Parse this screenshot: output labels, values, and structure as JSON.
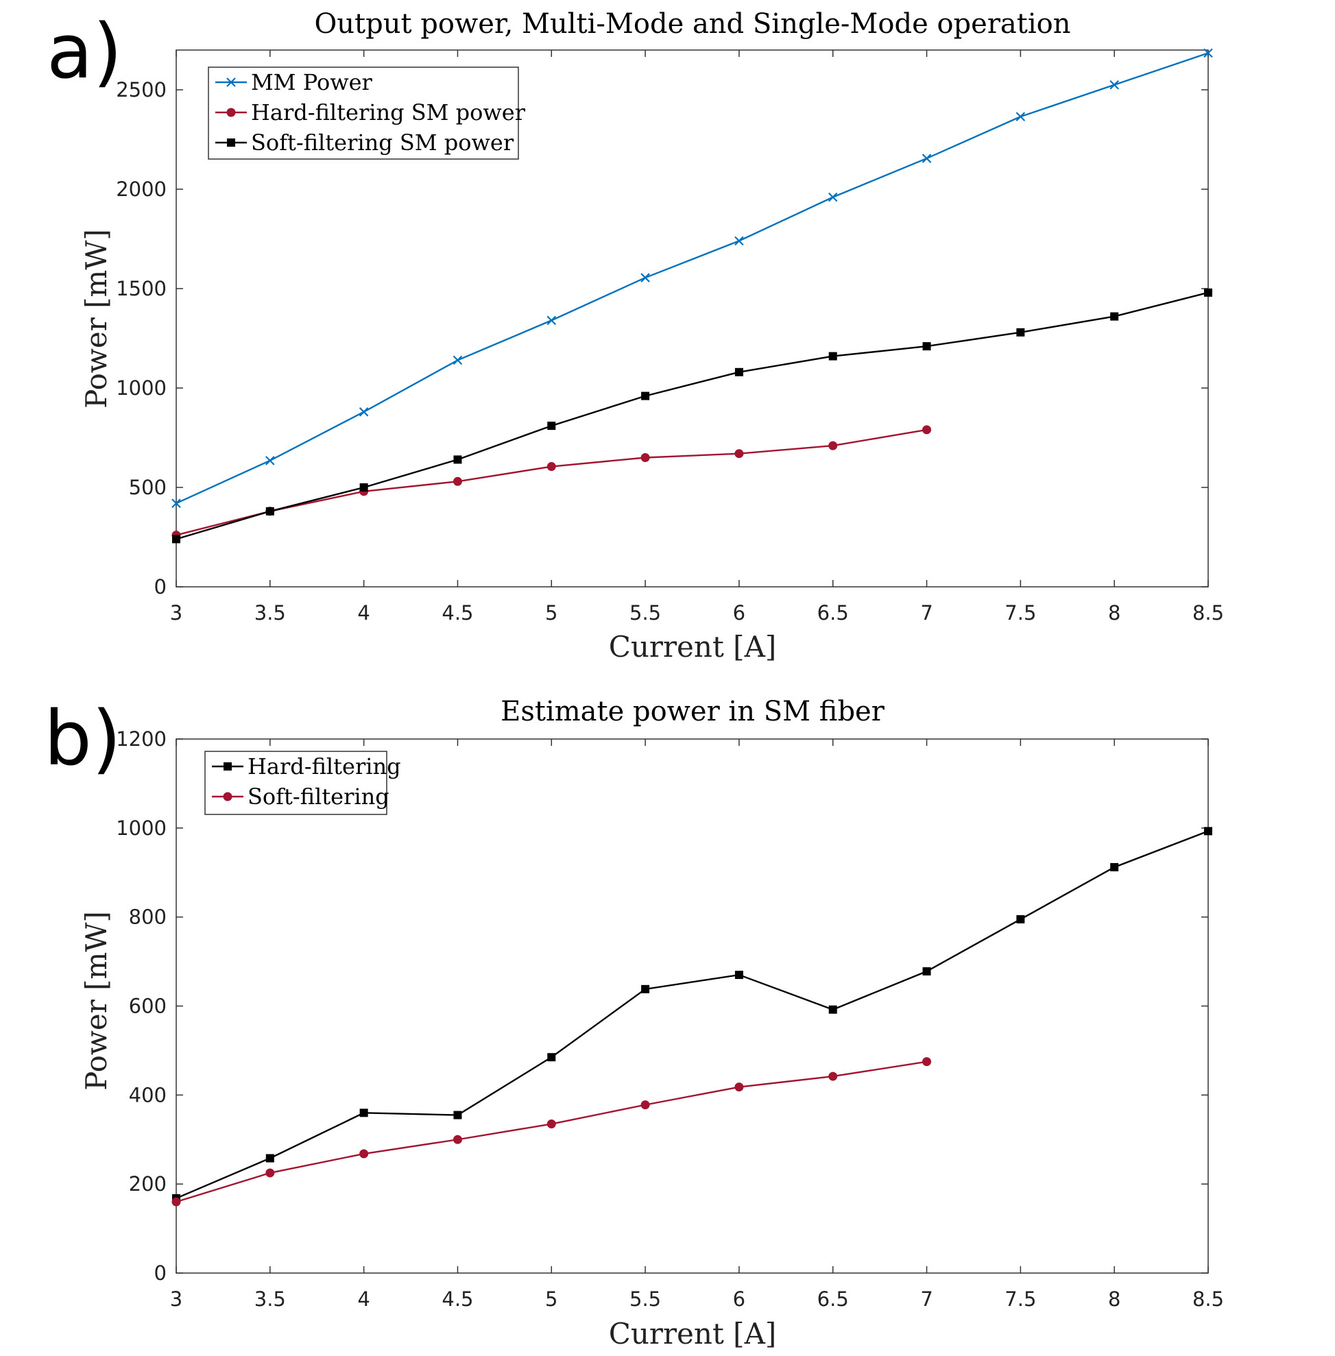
{
  "chart_data": [
    {
      "type": "line",
      "panel_label": "a)",
      "title": "Output power, Multi-Mode and Single-Mode operation",
      "xlabel": "Current [A]",
      "ylabel": "Power [mW]",
      "xlim": [
        3,
        8.5
      ],
      "ylim": [
        0,
        2700
      ],
      "xticks": [
        3,
        3.5,
        4,
        4.5,
        5,
        5.5,
        6,
        6.5,
        7,
        7.5,
        8,
        8.5
      ],
      "xtick_labels": [
        "3",
        "3.5",
        "4",
        "4.5",
        "5",
        "5.5",
        "6",
        "6.5",
        "7",
        "7.5",
        "8",
        "8.5"
      ],
      "yticks": [
        0,
        500,
        1000,
        1500,
        2000,
        2500
      ],
      "ytick_labels": [
        "0",
        "500",
        "1000",
        "1500",
        "2000",
        "2500"
      ],
      "legend_position": "top-left",
      "series": [
        {
          "name": "MM Power",
          "color": "#0072BD",
          "marker": "x",
          "x": [
            3,
            3.5,
            4,
            4.5,
            5,
            5.5,
            6,
            6.5,
            7,
            7.5,
            8,
            8.5
          ],
          "values": [
            420,
            635,
            880,
            1140,
            1340,
            1555,
            1740,
            1960,
            2155,
            2365,
            2525,
            2685
          ]
        },
        {
          "name": "Hard-filtering SM power",
          "color": "#A2142F",
          "marker": "circle",
          "x": [
            3,
            3.5,
            4,
            4.5,
            5,
            5.5,
            6,
            6.5,
            7
          ],
          "values": [
            260,
            380,
            480,
            530,
            605,
            650,
            670,
            710,
            790
          ]
        },
        {
          "name": "Soft-filtering SM power",
          "color": "#000000",
          "marker": "square",
          "x": [
            3,
            3.5,
            4,
            4.5,
            5,
            5.5,
            6,
            6.5,
            7,
            7.5,
            8,
            8.5
          ],
          "values": [
            240,
            380,
            500,
            640,
            810,
            960,
            1080,
            1160,
            1210,
            1280,
            1360,
            1480
          ]
        }
      ]
    },
    {
      "type": "line",
      "panel_label": "b)",
      "title": "Estimate power in SM fiber",
      "xlabel": "Current [A]",
      "ylabel": "Power [mW]",
      "xlim": [
        3,
        8.5
      ],
      "ylim": [
        0,
        1200
      ],
      "xticks": [
        3,
        3.5,
        4,
        4.5,
        5,
        5.5,
        6,
        6.5,
        7,
        7.5,
        8,
        8.5
      ],
      "xtick_labels": [
        "3",
        "3.5",
        "4",
        "4.5",
        "5",
        "5.5",
        "6",
        "6.5",
        "7",
        "7.5",
        "8",
        "8.5"
      ],
      "yticks": [
        0,
        200,
        400,
        600,
        800,
        1000,
        1200
      ],
      "ytick_labels": [
        "0",
        "200",
        "400",
        "600",
        "800",
        "1000",
        "1200"
      ],
      "legend_position": "top-left",
      "series": [
        {
          "name": "Hard-filtering",
          "color": "#000000",
          "marker": "square",
          "x": [
            3,
            3.5,
            4,
            4.5,
            5,
            5.5,
            6,
            6.5,
            7,
            7.5,
            8,
            8.5
          ],
          "values": [
            168,
            258,
            360,
            355,
            485,
            638,
            670,
            592,
            678,
            795,
            912,
            993
          ]
        },
        {
          "name": "Soft-filtering",
          "color": "#A2142F",
          "marker": "circle",
          "x": [
            3,
            3.5,
            4,
            4.5,
            5,
            5.5,
            6,
            6.5,
            7
          ],
          "values": [
            160,
            225,
            268,
            300,
            335,
            378,
            418,
            442,
            475
          ]
        }
      ]
    }
  ]
}
